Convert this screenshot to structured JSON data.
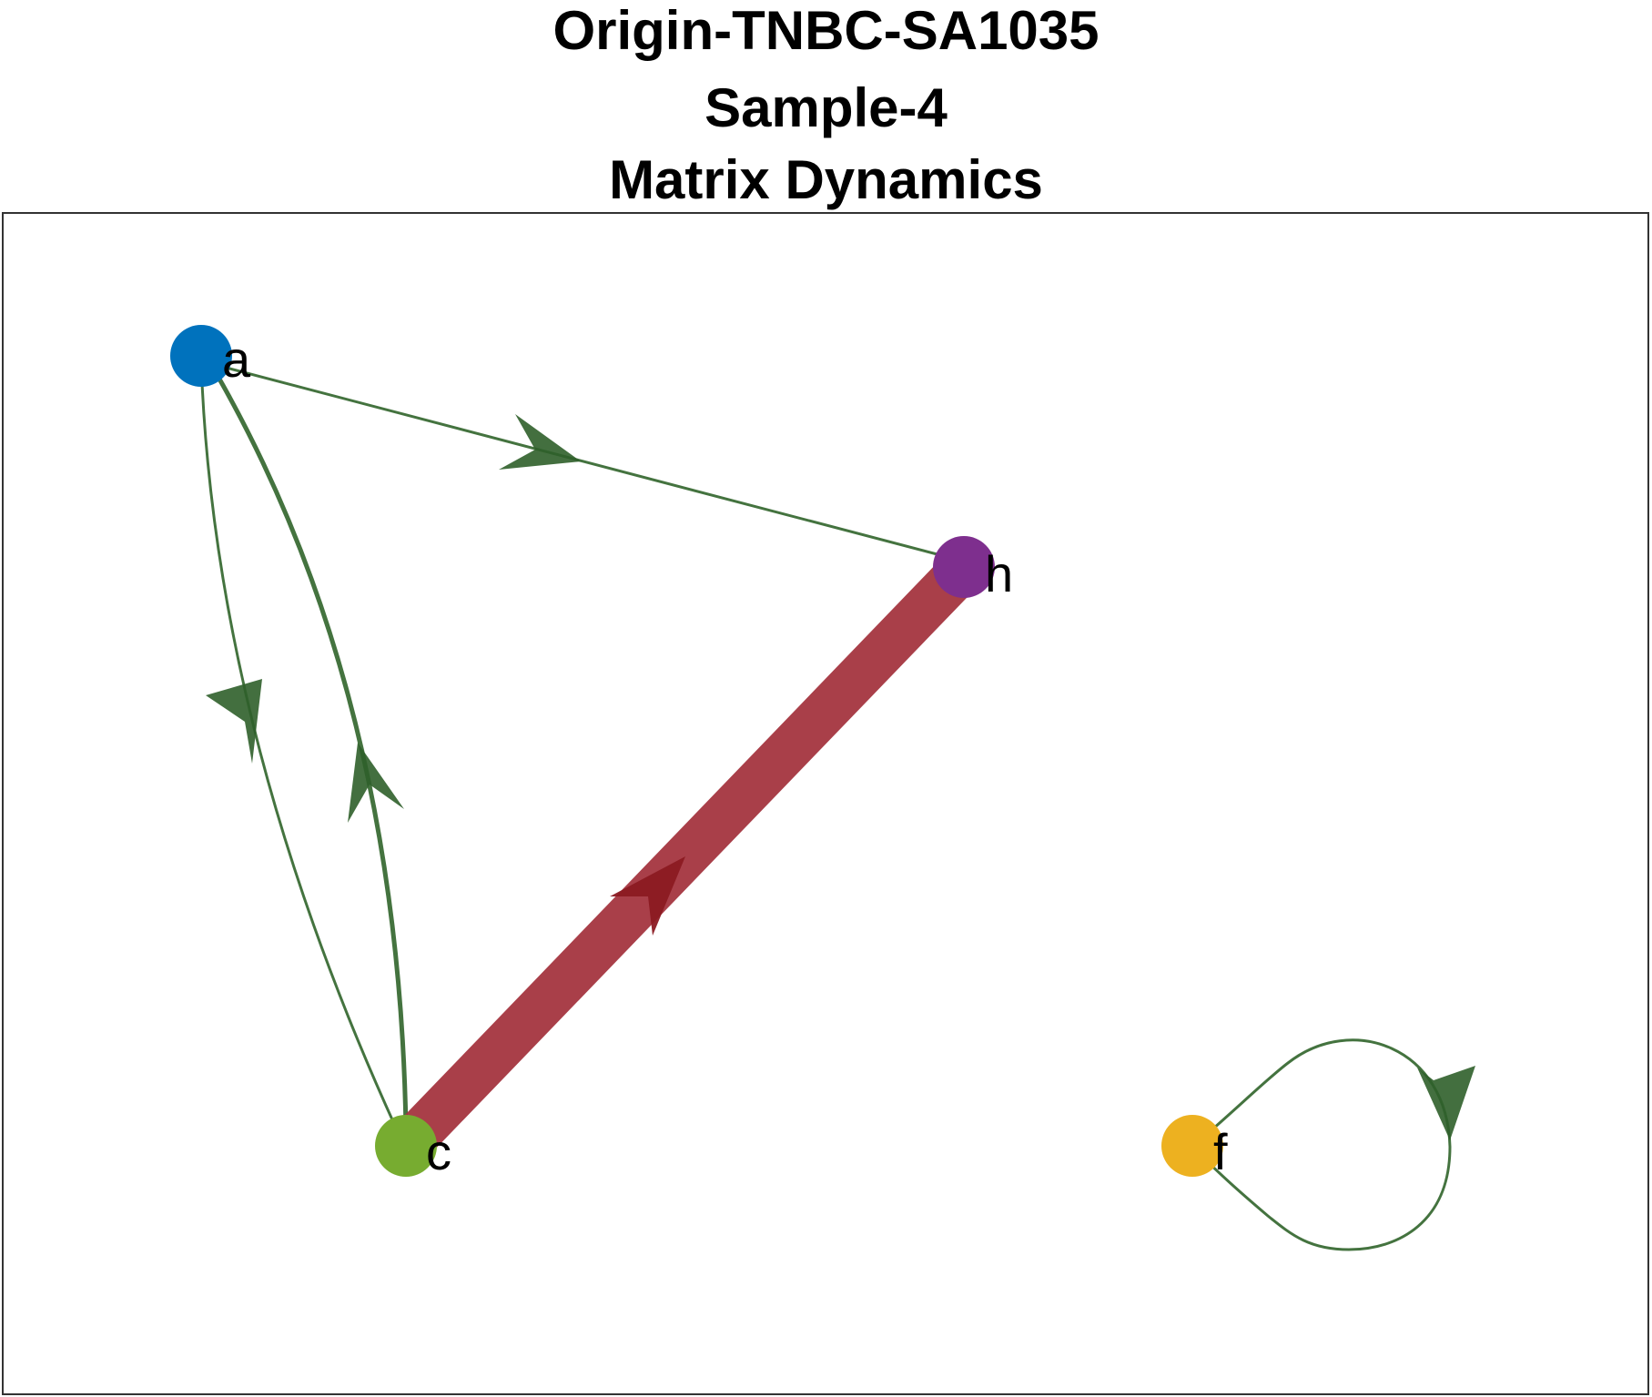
{
  "title": {
    "lines": [
      "Origin-TNBC-SA1035",
      "Sample-4",
      "Matrix Dynamics"
    ]
  },
  "graph": {
    "nodes": [
      {
        "id": "a",
        "label": "a",
        "color": "#0072BD"
      },
      {
        "id": "h",
        "label": "h",
        "color": "#7E2F8E"
      },
      {
        "id": "c",
        "label": "c",
        "color": "#77AC30"
      },
      {
        "id": "f",
        "label": "f",
        "color": "#EDB120"
      }
    ],
    "edges": [
      {
        "from": "a",
        "to": "h",
        "color": "#3a6b35"
      },
      {
        "from": "a",
        "to": "c",
        "color": "#3a6b35"
      },
      {
        "from": "c",
        "to": "a",
        "color": "#3a6b35"
      },
      {
        "from": "c",
        "to": "h",
        "color": "#a4353f"
      },
      {
        "from": "f",
        "to": "f",
        "color": "#3a6b35"
      }
    ]
  }
}
